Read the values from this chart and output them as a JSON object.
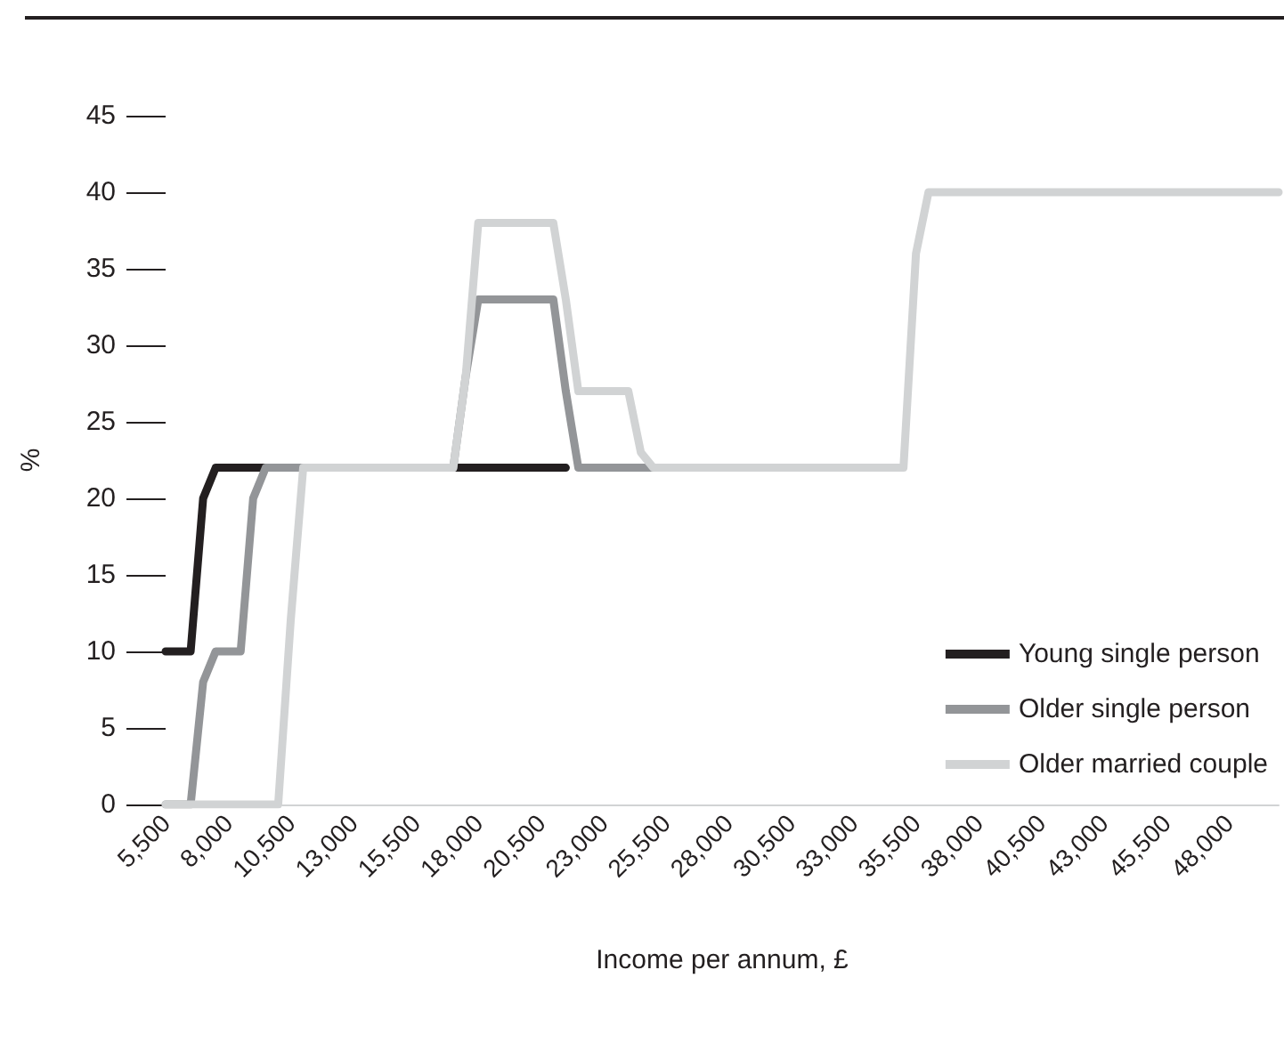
{
  "chart_data": {
    "type": "line",
    "xlabel": "Income per annum, £",
    "ylabel": "%",
    "xlim": [
      5500,
      50000
    ],
    "xticks": [
      {
        "value": 5500,
        "label": "5,500"
      },
      {
        "value": 8000,
        "label": "8,000"
      },
      {
        "value": 10500,
        "label": "10,500"
      },
      {
        "value": 13000,
        "label": "13,000"
      },
      {
        "value": 15500,
        "label": "15,500"
      },
      {
        "value": 18000,
        "label": "18,000"
      },
      {
        "value": 20500,
        "label": "20,500"
      },
      {
        "value": 23000,
        "label": "23,000"
      },
      {
        "value": 25500,
        "label": "25,500"
      },
      {
        "value": 28000,
        "label": "28,000"
      },
      {
        "value": 30500,
        "label": "30,500"
      },
      {
        "value": 33000,
        "label": "33,000"
      },
      {
        "value": 35500,
        "label": "35,500"
      },
      {
        "value": 38000,
        "label": "38,000"
      },
      {
        "value": 40500,
        "label": "40,500"
      },
      {
        "value": 43000,
        "label": "43,000"
      },
      {
        "value": 45500,
        "label": "45,500"
      },
      {
        "value": 48000,
        "label": "48,000"
      }
    ],
    "ylim": [
      0,
      45
    ],
    "yticks": [
      0,
      5,
      10,
      15,
      20,
      25,
      30,
      35,
      40,
      45
    ],
    "grid": false,
    "legend": "right",
    "marker": "none",
    "line_style": "solid",
    "series": [
      {
        "name": "Young single person",
        "color": "#231f20",
        "x": [
          5500,
          6500,
          7000,
          7500,
          21500
        ],
        "values": [
          10,
          10,
          20,
          22,
          22
        ]
      },
      {
        "name": "Older single person",
        "color": "#939598",
        "x": [
          5500,
          6500,
          7000,
          7500,
          8500,
          9000,
          9500,
          17000,
          17500,
          18000,
          21000,
          21500,
          22000,
          25000
        ],
        "values": [
          0,
          0,
          8,
          10,
          10,
          20,
          22,
          22,
          28,
          33,
          33,
          27,
          22,
          22
        ]
      },
      {
        "name": "Older married couple",
        "color": "#d1d3d4",
        "x": [
          5500,
          10000,
          10500,
          11000,
          17000,
          17500,
          18000,
          21000,
          21500,
          22000,
          24000,
          24500,
          25000,
          35000,
          35500,
          36000,
          50000
        ],
        "values": [
          0,
          0,
          12,
          22,
          22,
          28,
          38,
          38,
          33,
          27,
          27,
          23,
          22,
          22,
          36,
          40,
          40
        ]
      }
    ]
  }
}
